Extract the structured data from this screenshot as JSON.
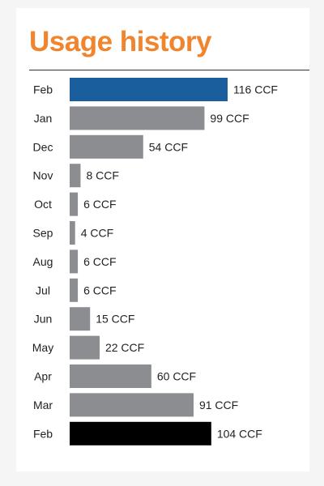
{
  "title": "Usage history",
  "colors": {
    "title": "#f0852d",
    "highlight": "#1b5e9e",
    "default_bar": "#8c8d90",
    "baseline_bar": "#000000"
  },
  "chart_data": {
    "type": "bar",
    "orientation": "horizontal",
    "title": "Usage history",
    "xlabel": "",
    "ylabel": "",
    "grid": false,
    "categories": [
      "Feb",
      "Jan",
      "Dec",
      "Nov",
      "Oct",
      "Sep",
      "Aug",
      "Jul",
      "Jun",
      "May",
      "Apr",
      "Mar",
      "Feb"
    ],
    "values": [
      116,
      99,
      54,
      8,
      6,
      4,
      6,
      6,
      15,
      22,
      60,
      91,
      104
    ],
    "data_labels": [
      "116 CCF",
      "99 CCF",
      "54 CCF",
      "8 CCF",
      "6 CCF",
      "4 CCF",
      "6 CCF",
      "6 CCF",
      "15 CCF",
      "22 CCF",
      "60 CCF",
      "91 CCF",
      "104 CCF"
    ],
    "bar_colors": [
      "#1b5e9e",
      "#8c8d90",
      "#8c8d90",
      "#8c8d90",
      "#8c8d90",
      "#8c8d90",
      "#8c8d90",
      "#8c8d90",
      "#8c8d90",
      "#8c8d90",
      "#8c8d90",
      "#8c8d90",
      "#000000"
    ],
    "unit": "CCF",
    "xlim": [
      0,
      116
    ]
  }
}
